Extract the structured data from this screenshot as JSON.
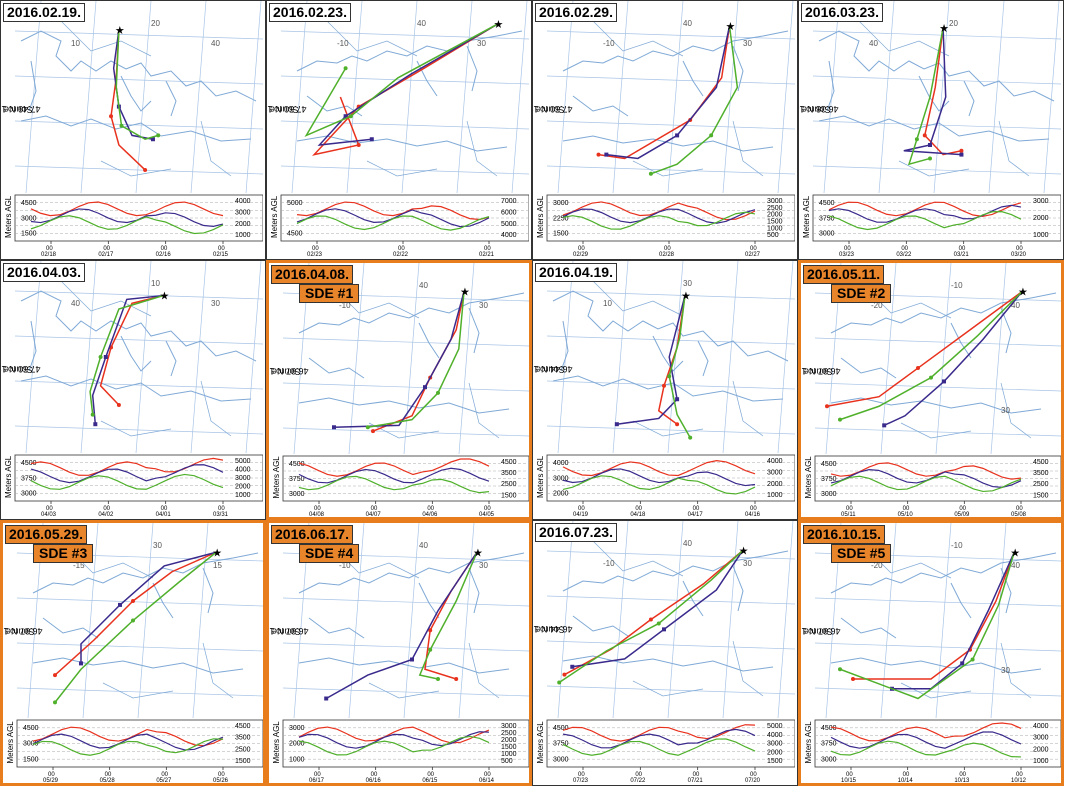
{
  "source_text": "Source ★ at",
  "meters_label": "Meters AGL",
  "colors": {
    "red": "#e8321e",
    "blue": "#3a2a8c",
    "green": "#4fb02b",
    "map": "#7fa9d6",
    "grid": "#a8c4e6",
    "sde_border": "#e87d1e"
  },
  "panels": [
    {
      "id": "p1",
      "date": "2016.02.19.",
      "sde": "",
      "coords": "47.49 N  19.08 E",
      "map_labels": [
        "10",
        "20",
        "40"
      ],
      "alt_left": [
        "4500",
        "3000",
        "1500"
      ],
      "alt_right": [
        "4000",
        "3000",
        "2000",
        "1000"
      ],
      "time_ticks": [
        "02/18",
        "02/17",
        "02/16",
        "02/15"
      ]
    },
    {
      "id": "p2",
      "date": "2016.02.23.",
      "sde": "",
      "coords": "47.50 N  19.07 E",
      "map_labels": [
        "-10",
        "40",
        "30"
      ],
      "alt_left": [
        "5000",
        "4500"
      ],
      "alt_right": [
        "7000",
        "6000",
        "5000",
        "4000"
      ],
      "time_ticks": [
        "02/23",
        "02/22",
        "02/21"
      ]
    },
    {
      "id": "p3",
      "date": "2016.02.29.",
      "sde": "",
      "coords": "47.50 N  19.07 E",
      "map_labels": [
        "-10",
        "40",
        "30"
      ],
      "alt_left": [
        "3000",
        "2250",
        "1500"
      ],
      "alt_right": [
        "3000",
        "2500",
        "2000",
        "1500",
        "1000",
        "500"
      ],
      "time_ticks": [
        "02/29",
        "02/28",
        "02/27"
      ]
    },
    {
      "id": "p4",
      "date": "2016.03.23.",
      "sde": "",
      "coords": "46.38 N  18.90 E",
      "map_labels": [
        "40",
        "20"
      ],
      "alt_left": [
        "4500",
        "3750",
        "3000"
      ],
      "alt_right": [
        "3000",
        "2000",
        "1000"
      ],
      "time_ticks": [
        "03/23",
        "03/22",
        "03/21",
        "03/20"
      ]
    },
    {
      "id": "p5",
      "date": "2016.04.03.",
      "sde": "",
      "coords": "47.50 N  19.05 E",
      "map_labels": [
        "40",
        "10",
        "30"
      ],
      "alt_left": [
        "4500",
        "3750",
        "3000"
      ],
      "alt_right": [
        "5000",
        "4000",
        "3000",
        "2000",
        "1000"
      ],
      "time_ticks": [
        "04/03",
        "04/02",
        "04/01",
        "03/31"
      ]
    },
    {
      "id": "p6",
      "date": "2016.04.08.",
      "sde": "SDE #1",
      "coords": "46.97 N  17.93 E",
      "map_labels": [
        "-10",
        "40",
        "30"
      ],
      "alt_left": [
        "4500",
        "3750",
        "3000"
      ],
      "alt_right": [
        "4500",
        "3500",
        "2500",
        "1500"
      ],
      "time_ticks": [
        "04/08",
        "04/07",
        "04/06",
        "04/05"
      ]
    },
    {
      "id": "p7",
      "date": "2016.04.19.",
      "sde": "",
      "coords": "46.44 N  18.19 E",
      "map_labels": [
        "10",
        "30"
      ],
      "alt_left": [
        "4000",
        "3000",
        "2000"
      ],
      "alt_right": [
        "4000",
        "3000",
        "2000",
        "1000"
      ],
      "time_ticks": [
        "04/19",
        "04/18",
        "04/17",
        "04/16"
      ]
    },
    {
      "id": "p8",
      "date": "2016.05.11.",
      "sde": "SDE #2",
      "coords": "46.97 N  17.93 E",
      "map_labels": [
        "-20",
        "-10",
        "40",
        "30"
      ],
      "alt_left": [
        "4500",
        "3750",
        "3000"
      ],
      "alt_right": [
        "4500",
        "3500",
        "2500",
        "1500"
      ],
      "time_ticks": [
        "05/11",
        "05/10",
        "05/09",
        "05/08"
      ]
    },
    {
      "id": "p9",
      "date": "2016.05.29.",
      "sde": "SDE #3",
      "coords": "46.97 N  17.93 E",
      "map_labels": [
        "-15",
        "30",
        "15"
      ],
      "alt_left": [
        "4500",
        "3000",
        "1500"
      ],
      "alt_right": [
        "4500",
        "3500",
        "2500",
        "1500"
      ],
      "time_ticks": [
        "05/29",
        "05/28",
        "05/27",
        "05/26"
      ]
    },
    {
      "id": "p10",
      "date": "2016.06.17.",
      "sde": "SDE #4",
      "coords": "46.97 N  17.93 E",
      "map_labels": [
        "-10",
        "40",
        "30"
      ],
      "alt_left": [
        "3000",
        "2000",
        "1000"
      ],
      "alt_right": [
        "3000",
        "2500",
        "2000",
        "1500",
        "1000",
        "500"
      ],
      "time_ticks": [
        "06/17",
        "06/16",
        "06/15",
        "06/14"
      ]
    },
    {
      "id": "p11",
      "date": "2016.07.23.",
      "sde": "",
      "coords": "46.44 N  18.19 E",
      "map_labels": [
        "-10",
        "40",
        "30"
      ],
      "alt_left": [
        "4500",
        "3750",
        "3000"
      ],
      "alt_right": [
        "5000",
        "4000",
        "3000",
        "2000",
        "1500"
      ],
      "time_ticks": [
        "07/23",
        "07/22",
        "07/21",
        "07/20"
      ]
    },
    {
      "id": "p12",
      "date": "2016.10.15.",
      "sde": "SDE #5",
      "coords": "46.97 N  17.93 E",
      "map_labels": [
        "-20",
        "-10",
        "40",
        "30"
      ],
      "alt_left": [
        "4500",
        "3750",
        "3000"
      ],
      "alt_right": [
        "4000",
        "3000",
        "2000",
        "1000"
      ],
      "time_ticks": [
        "10/15",
        "10/14",
        "10/13",
        "10/12"
      ]
    }
  ]
}
